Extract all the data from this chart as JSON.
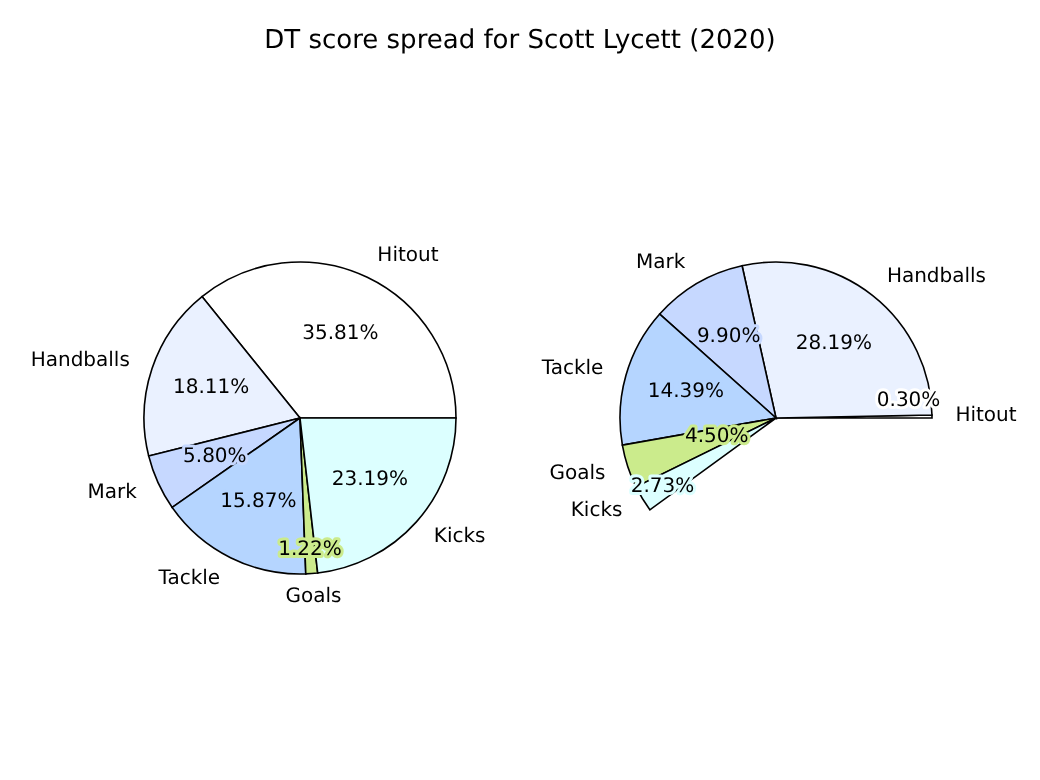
{
  "chart_data": [
    {
      "type": "pie",
      "title": "DT score spread for Scott Lycett (2020)",
      "categories": [
        "Hitout",
        "Handballs",
        "Mark",
        "Tackle",
        "Goals",
        "Kicks"
      ],
      "values": [
        35.81,
        18.11,
        5.8,
        15.87,
        1.22,
        23.19
      ],
      "value_labels": [
        "35.81%",
        "18.11%",
        "5.80%",
        "15.87%",
        "1.22%",
        "23.19%"
      ],
      "colors": [
        "#ffffff",
        "#eaf1ff",
        "#c6d8ff",
        "#b5d5ff",
        "#cbeb8c",
        "#dcffff"
      ],
      "legend": false
    },
    {
      "type": "pie",
      "categories": [
        "Hitout",
        "Handballs",
        "Mark",
        "Tackle",
        "Goals",
        "Kicks"
      ],
      "values": [
        0.3,
        28.19,
        9.9,
        14.39,
        4.5,
        2.73
      ],
      "value_labels": [
        "0.30%",
        "28.19%",
        "9.90%",
        "14.39%",
        "4.50%",
        "2.73%"
      ],
      "colors": [
        "#ffffff",
        "#eaf1ff",
        "#c6d8ff",
        "#b5d5ff",
        "#cbeb8c",
        "#dcffff"
      ],
      "legend": false
    }
  ]
}
